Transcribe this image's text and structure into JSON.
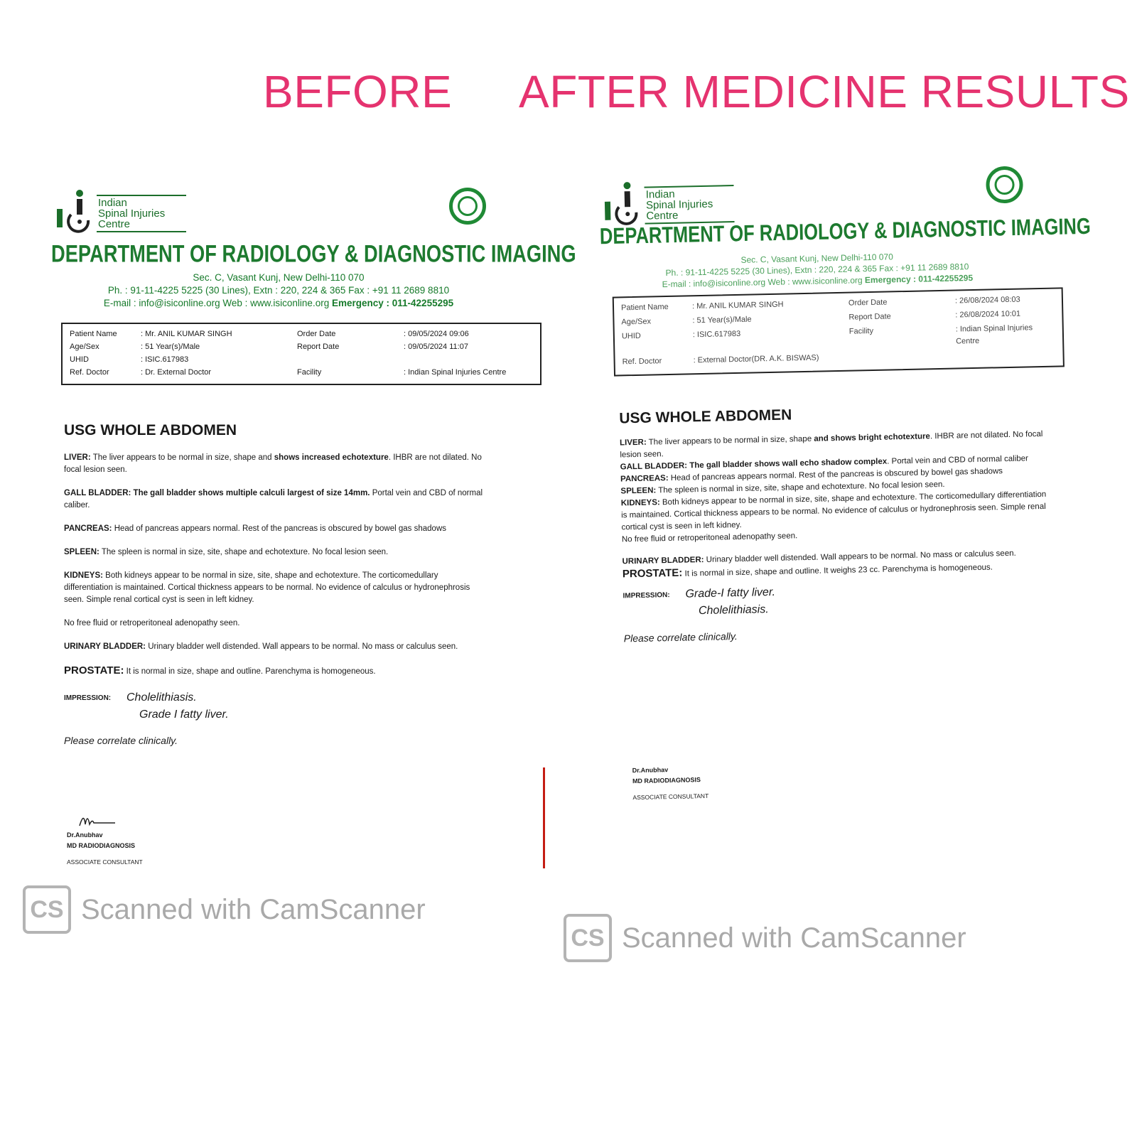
{
  "headline": {
    "before": "BEFORE",
    "after": "AFTER MEDICINE RESULTS",
    "color": "#e5336f"
  },
  "docs": [
    {
      "logo_text": [
        "Indian",
        "Spinal Injuries",
        "Centre"
      ],
      "department": "DEPARTMENT OF RADIOLOGY & DIAGNOSTIC IMAGING",
      "address": "Sec. C, Vasant Kunj, New Delhi-110 070",
      "phone": "Ph. : 91-11-4225 5225 (30 Lines), Extn : 220, 224 & 365 Fax : +91 11 2689 8810",
      "email_web": "E-mail : info@isiconline.org   Web : www.isiconline.org",
      "emergency": "Emergency : 011-42255295",
      "patient": [
        [
          "Patient Name",
          ": Mr. ANIL KUMAR SINGH",
          "Order Date",
          ": 09/05/2024 09:06"
        ],
        [
          "Age/Sex",
          ": 51 Year(s)/Male",
          "Report Date",
          ": 09/05/2024 11:07"
        ],
        [
          "UHID",
          ": ISIC.617983",
          "",
          ""
        ],
        [
          "Ref. Doctor",
          ": Dr. External Doctor",
          "Facility",
          ": Indian Spinal Injuries Centre"
        ]
      ],
      "title": "USG WHOLE ABDOMEN",
      "sections": [
        {
          "label": "LIVER:",
          "segments": [
            {
              "t": " The liver appears to be normal in size, shape and ",
              "b": false
            },
            {
              "t": "shows increased echotexture",
              "b": true
            },
            {
              "t": ". IHBR are not dilated. No focal lesion seen.",
              "b": false
            }
          ]
        },
        {
          "label": "GALL BLADDER:",
          "segments": [
            {
              "t": " The gall bladder shows multiple calculi largest of size 14mm.",
              "b": true
            },
            {
              "t": " Portal vein and CBD of normal caliber.",
              "b": false
            }
          ]
        },
        {
          "label": "PANCREAS:",
          "segments": [
            {
              "t": " Head of pancreas appears normal. Rest of the pancreas is obscured by bowel gas shadows",
              "b": false
            }
          ]
        },
        {
          "label": "SPLEEN:",
          "segments": [
            {
              "t": " The spleen is normal in size, site, shape and echotexture. No focal lesion seen.",
              "b": false
            }
          ]
        },
        {
          "label": "KIDNEYS:",
          "segments": [
            {
              "t": " Both kidneys appear to be normal in size, site, shape and echotexture. The corticomedullary differentiation is maintained. Cortical thickness appears to be normal. No evidence of calculus or hydronephrosis seen. Simple renal cortical cyst is seen in left kidney.",
              "b": false
            }
          ]
        },
        {
          "label": "",
          "segments": [
            {
              "t": "No free fluid or retroperitoneal adenopathy seen.",
              "b": false
            }
          ]
        },
        {
          "label": "URINARY BLADDER:",
          "segments": [
            {
              "t": " Urinary bladder well distended. Wall appears to be normal. No mass or calculus seen.",
              "b": false
            }
          ]
        },
        {
          "label": "PROSTATE:",
          "big": true,
          "segments": [
            {
              "t": " It is normal in size, shape and outline.  Parenchyma is homogeneous.",
              "b": false
            }
          ]
        }
      ],
      "impression_label": "IMPRESSION:",
      "impression": [
        "Cholelithiasis.",
        "Grade I fatty liver."
      ],
      "correlate": "Please correlate clinically.",
      "signature": {
        "name": "Dr.Anubhav",
        "degree": "MD RADIODIAGNOSIS",
        "role": "ASSOCIATE CONSULTANT"
      }
    },
    {
      "logo_text": [
        "Indian",
        "Spinal Injuries",
        "Centre"
      ],
      "department": "DEPARTMENT OF RADIOLOGY & DIAGNOSTIC IMAGING",
      "address": "Sec. C, Vasant Kunj, New Delhi-110 070",
      "phone": "Ph. : 91-11-4225 5225 (30 Lines), Extn : 220, 224 & 365 Fax : +91 11 2689 8810",
      "email_web": "E-mail : info@isiconline.org   Web : www.isiconline.org",
      "emergency": "Emergency : 011-42255295",
      "patient": [
        [
          "Patient Name",
          ": Mr. ANIL KUMAR SINGH",
          "Order Date",
          ": 26/08/2024 08:03"
        ],
        [
          "Age/Sex",
          ": 51 Year(s)/Male",
          "Report Date",
          ": 26/08/2024 10:01"
        ],
        [
          "UHID",
          ": ISIC.617983",
          "Facility",
          ": Indian Spinal Injuries Centre"
        ],
        [
          "Ref. Doctor",
          ": External Doctor(DR. A.K. BISWAS)",
          "",
          ""
        ]
      ],
      "title": "USG WHOLE ABDOMEN",
      "sections": [
        {
          "label": "LIVER:",
          "segments": [
            {
              "t": " The liver appears to be normal in size, shape ",
              "b": false
            },
            {
              "t": "and shows bright echotexture",
              "b": true
            },
            {
              "t": ". IHBR are not dilated. No focal lesion seen.",
              "b": false
            }
          ]
        },
        {
          "label": "GALL BLADDER:",
          "segments": [
            {
              "t": " The gall bladder shows wall echo shadow complex",
              "b": true
            },
            {
              "t": ". Portal vein and CBD of normal caliber",
              "b": false
            }
          ]
        },
        {
          "label": "PANCREAS:",
          "segments": [
            {
              "t": " Head of pancreas appears normal. Rest of the pancreas is obscured by bowel gas shadows",
              "b": false
            }
          ]
        },
        {
          "label": "SPLEEN:",
          "segments": [
            {
              "t": " The spleen is normal in size, site, shape and echotexture. No focal lesion seen.",
              "b": false
            }
          ]
        },
        {
          "label": "KIDNEYS:",
          "segments": [
            {
              "t": " Both kidneys appear to be normal in size, site, shape and echotexture. The corticomedullary differentiation is maintained. Cortical thickness appears to be normal. No evidence of calculus or hydronephrosis seen. Simple renal cortical cyst is seen in left kidney.",
              "b": false
            }
          ]
        },
        {
          "label": "",
          "segments": [
            {
              "t": "No free fluid or retroperitoneal adenopathy seen.",
              "b": false
            }
          ]
        },
        {
          "label": "URINARY BLADDER:",
          "gap": true,
          "segments": [
            {
              "t": " Urinary bladder well distended. Wall appears to be normal. No mass or calculus seen.",
              "b": false
            }
          ]
        },
        {
          "label": "PROSTATE:",
          "big": true,
          "segments": [
            {
              "t": " It is normal in size, shape and outline. It weighs 23 cc. Parenchyma is homogeneous.",
              "b": false
            }
          ]
        }
      ],
      "impression_label": "IMPRESSION:",
      "impression": [
        "Grade-I fatty liver.",
        "Cholelithiasis."
      ],
      "correlate": "Please correlate clinically.",
      "signature": {
        "name": "Dr.Anubhav",
        "degree": "MD RADIODIAGNOSIS",
        "role": "ASSOCIATE CONSULTANT"
      }
    }
  ],
  "watermark": {
    "icon": "camscanner-icon",
    "icon_text": "CS",
    "text": "Scanned with CamScanner"
  }
}
